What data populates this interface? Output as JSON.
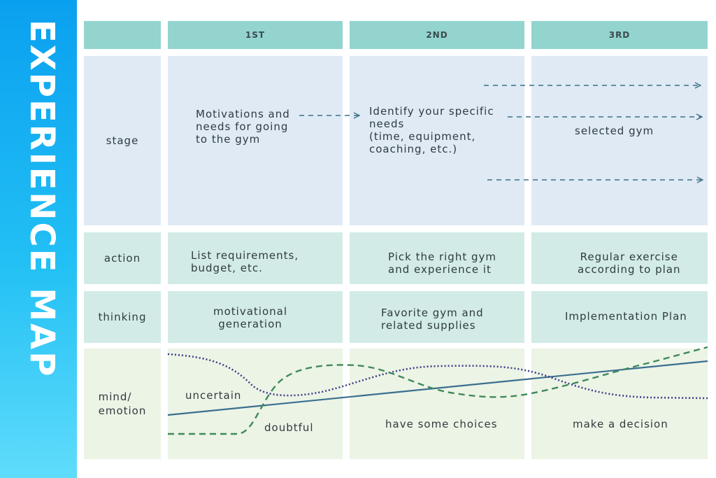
{
  "sidebar": {
    "title": "EXPERIENCE MAP"
  },
  "columns": [
    "1ST",
    "2ND",
    "3RD"
  ],
  "rows": {
    "stage": {
      "label": "stage",
      "cells": [
        "Motivations and\nneeds for going\nto the gym",
        "Identify your specific\nneeds\n(time, equipment,\ncoaching, etc.)",
        "selected gym"
      ]
    },
    "action": {
      "label": "action",
      "cells": [
        "List requirements,\nbudget, etc.",
        "Pick the right gym\nand experience it",
        "Regular exercise\naccording to plan"
      ]
    },
    "thinking": {
      "label": "thinking",
      "cells": [
        "motivational\ngeneration",
        "Favorite gym and\nrelated supplies",
        "Implementation Plan"
      ]
    },
    "emotion": {
      "label": "mind/\nemotion",
      "cells": [
        "uncertain",
        "doubtful",
        "have some choices",
        "make a decision"
      ]
    }
  },
  "colors": {
    "header": "#93d4cf",
    "stage_bg": "#dfeaf5",
    "action_bg": "#d2ebe7",
    "emotion_bg": "#ecf4e6",
    "arrow": "#3f6f87",
    "dotted_curve": "#3b3f86",
    "dashed_curve": "#3f8a5a",
    "trend_line": "#3b6e8f"
  }
}
